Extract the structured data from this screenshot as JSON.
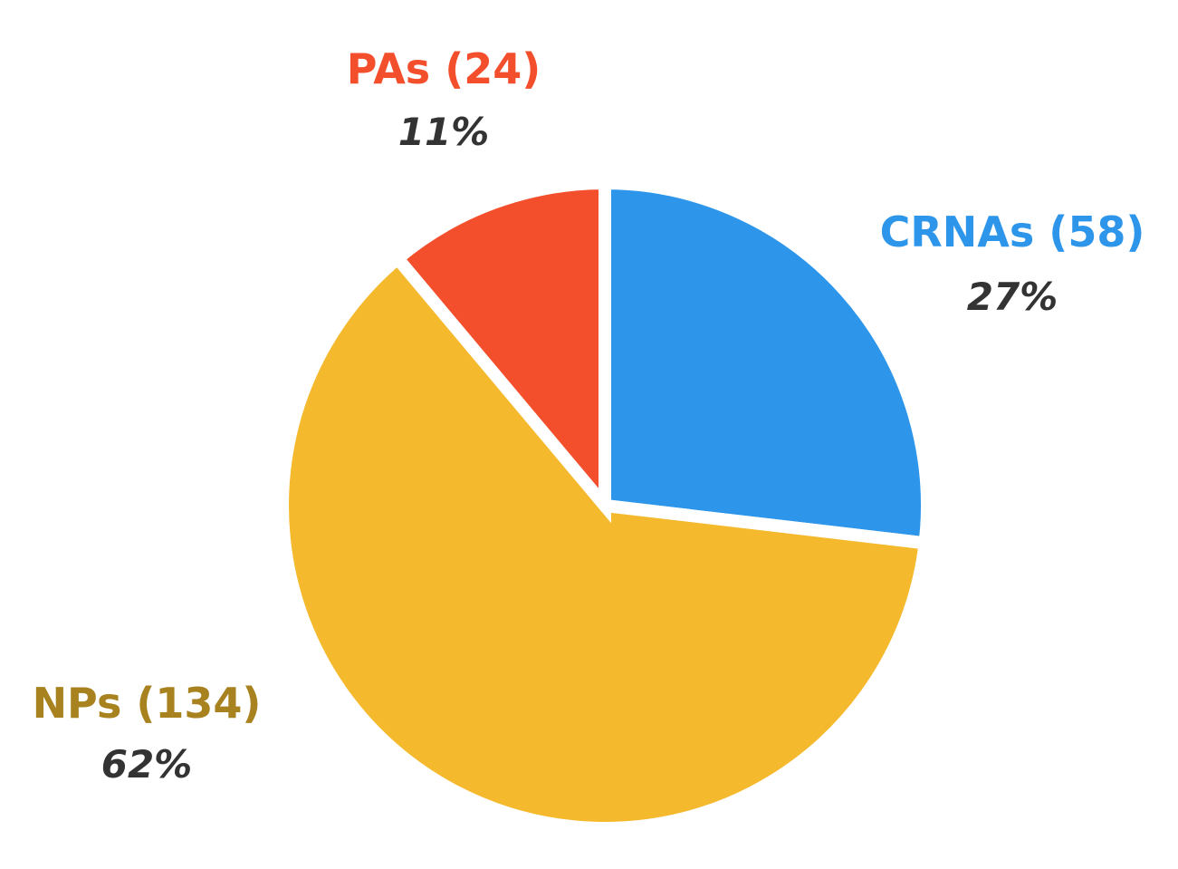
{
  "chart_data": {
    "type": "pie",
    "slices": [
      {
        "label": "CRNAs (58)",
        "value": 58,
        "percent_label": "27%",
        "color": "#2E96EA",
        "label_color": "#2E96EA"
      },
      {
        "label": "NPs (134)",
        "value": 134,
        "percent_label": "62%",
        "color": "#F5B92D",
        "label_color": "#A8821F"
      },
      {
        "label": "PAs (24)",
        "value": 24,
        "percent_label": "11%",
        "color": "#F44F2D",
        "label_color": "#F44F2D"
      }
    ]
  }
}
